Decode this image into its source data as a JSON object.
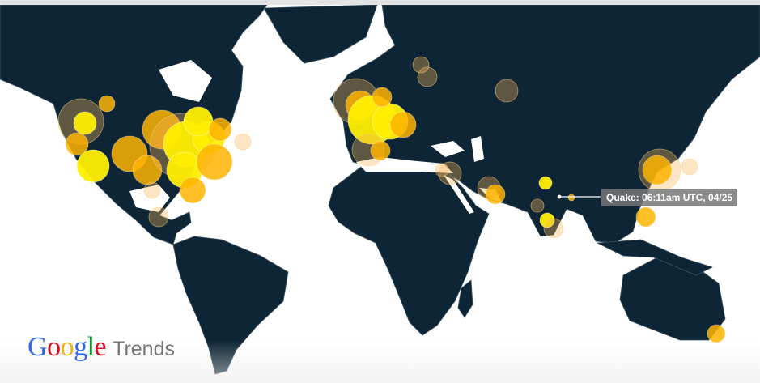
{
  "colors": {
    "land": "#0d2535",
    "ocean": "#ffffff",
    "borders": "#3b5466",
    "dot_core": "#ffee00",
    "dot_mid": "#ffb400",
    "dot_halo": "#f6b458"
  },
  "tooltip": {
    "label": "Quake: 06:11am UTC, 04/25"
  },
  "logo": {
    "letters": [
      {
        "char": "G",
        "color": "#3369e8"
      },
      {
        "char": "o",
        "color": "#d50f25"
      },
      {
        "char": "o",
        "color": "#eeb211"
      },
      {
        "char": "g",
        "color": "#3369e8"
      },
      {
        "char": "l",
        "color": "#009925"
      },
      {
        "char": "e",
        "color": "#d50f25"
      }
    ],
    "suffix": "Trends"
  }
}
